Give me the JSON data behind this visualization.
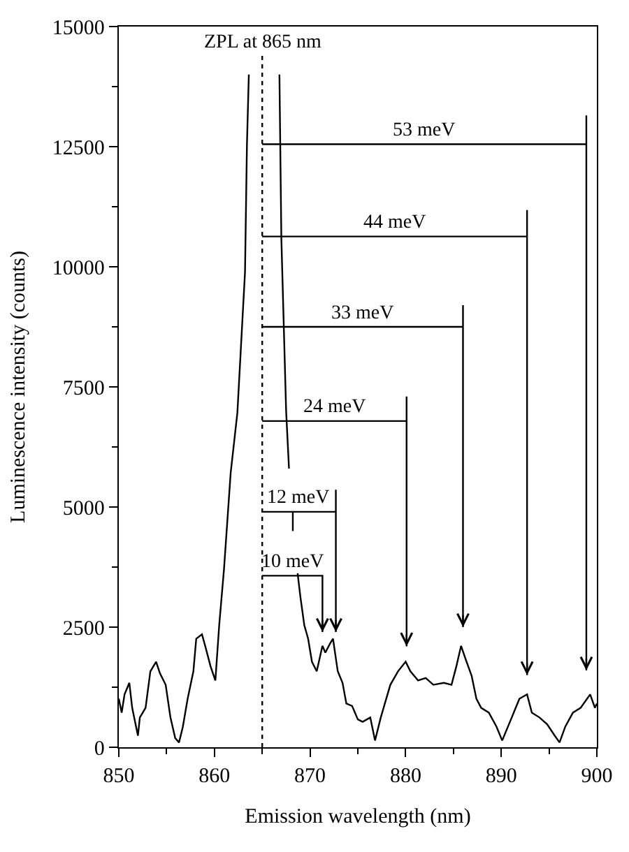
{
  "chart_data": {
    "type": "line",
    "xlabel": "Emission wavelength (nm)",
    "ylabel": "Luminescence intensity (counts)",
    "xlim": [
      850,
      900
    ],
    "xticks": [
      850,
      860,
      870,
      880,
      890,
      900
    ],
    "ylim": [
      0,
      15000
    ],
    "yticks": [
      0,
      2500,
      5000,
      7500,
      10000,
      12500,
      15000
    ],
    "marker": "none",
    "line_style": "solid",
    "series": [
      {
        "color": "#000000",
        "x": [
          850,
          850.3,
          850.6,
          851.1,
          851.4,
          852.0,
          852.2,
          852.8,
          853.3,
          853.9,
          854.3,
          854.9,
          855.4,
          855.9,
          856.3,
          856.7,
          857.2,
          857.8,
          858.1,
          858.7,
          859.1,
          859.6,
          860.1,
          860.5,
          861.0,
          861.7,
          862.4,
          863.2,
          863.4,
          863.6,
          865.0,
          866.8,
          867.0,
          867.5,
          867.8,
          868.0,
          868.2,
          868.2,
          868.5,
          868.7,
          869.0,
          869.4,
          869.8,
          870.2,
          870.7,
          871.3,
          871.6,
          872.1,
          872.4,
          872.9,
          873.4,
          873.8,
          874.4,
          875.0,
          875.5,
          876.3,
          876.8,
          877.4,
          877.9,
          878.4,
          879.2,
          880.0,
          880.5,
          881.3,
          882.1,
          882.9,
          884.0,
          884.8,
          885.3,
          885.8,
          886.3,
          886.9,
          887.4,
          887.9,
          888.7,
          889.5,
          890.1,
          890.6,
          891.1,
          891.9,
          892.7,
          893.2,
          894.0,
          894.8,
          895.6,
          896.1,
          896.7,
          897.5,
          898.3,
          898.8,
          899.3,
          899.8,
          900
        ],
        "values": [
          1010,
          720,
          1100,
          1340,
          820,
          240,
          620,
          820,
          1580,
          1780,
          1540,
          1300,
          620,
          190,
          100,
          430,
          1010,
          1580,
          2260,
          2350,
          2060,
          1680,
          1390,
          2540,
          3700,
          5710,
          6960,
          9890,
          12530,
          14000,
          null,
          14000,
          10600,
          7000,
          5800,
          null,
          4900,
          4500,
          null,
          3620,
          3120,
          2540,
          2260,
          1780,
          1580,
          2110,
          1970,
          2160,
          2260,
          1580,
          1340,
          910,
          860,
          580,
          530,
          620,
          140,
          620,
          960,
          1300,
          1580,
          1780,
          1580,
          1390,
          1440,
          1300,
          1340,
          1300,
          1680,
          2110,
          1820,
          1490,
          1010,
          820,
          720,
          430,
          140,
          380,
          620,
          1010,
          1100,
          720,
          620,
          480,
          240,
          100,
          430,
          720,
          820,
          960,
          1100,
          820,
          910
        ]
      },
      {
        "color": "#000000",
        "x": [
          865,
          898.9,
          898.9,
          898.9
        ],
        "values": [
          12550,
          12550,
          13150,
          1600
        ]
      },
      {
        "color": "#000000",
        "x": [
          865,
          892.7,
          892.7,
          892.7
        ],
        "values": [
          10630,
          10630,
          11180,
          1500
        ]
      },
      {
        "color": "#000000",
        "x": [
          865,
          886.0,
          886.0,
          886.0
        ],
        "values": [
          8750,
          8750,
          9200,
          2500
        ]
      },
      {
        "color": "#000000",
        "x": [
          865,
          880.1,
          880.1,
          880.1
        ],
        "values": [
          6790,
          6790,
          7300,
          2100
        ]
      },
      {
        "color": "#000000",
        "x": [
          865,
          872.7,
          872.7,
          872.7
        ],
        "values": [
          4900,
          4900,
          5360,
          2400
        ]
      },
      {
        "color": "#000000",
        "x": [
          865,
          871.3,
          871.3
        ],
        "values": [
          3570,
          3570,
          2400
        ]
      }
    ],
    "ref_lines": [
      {
        "axis": "x",
        "value": 865,
        "label": "ZPL at 865 nm",
        "line_style": "dotted",
        "color": "#000000"
      }
    ],
    "annotations": [
      "53 meV",
      "44 meV",
      "33 meV",
      "24 meV",
      "12 meV",
      "10 meV"
    ]
  }
}
